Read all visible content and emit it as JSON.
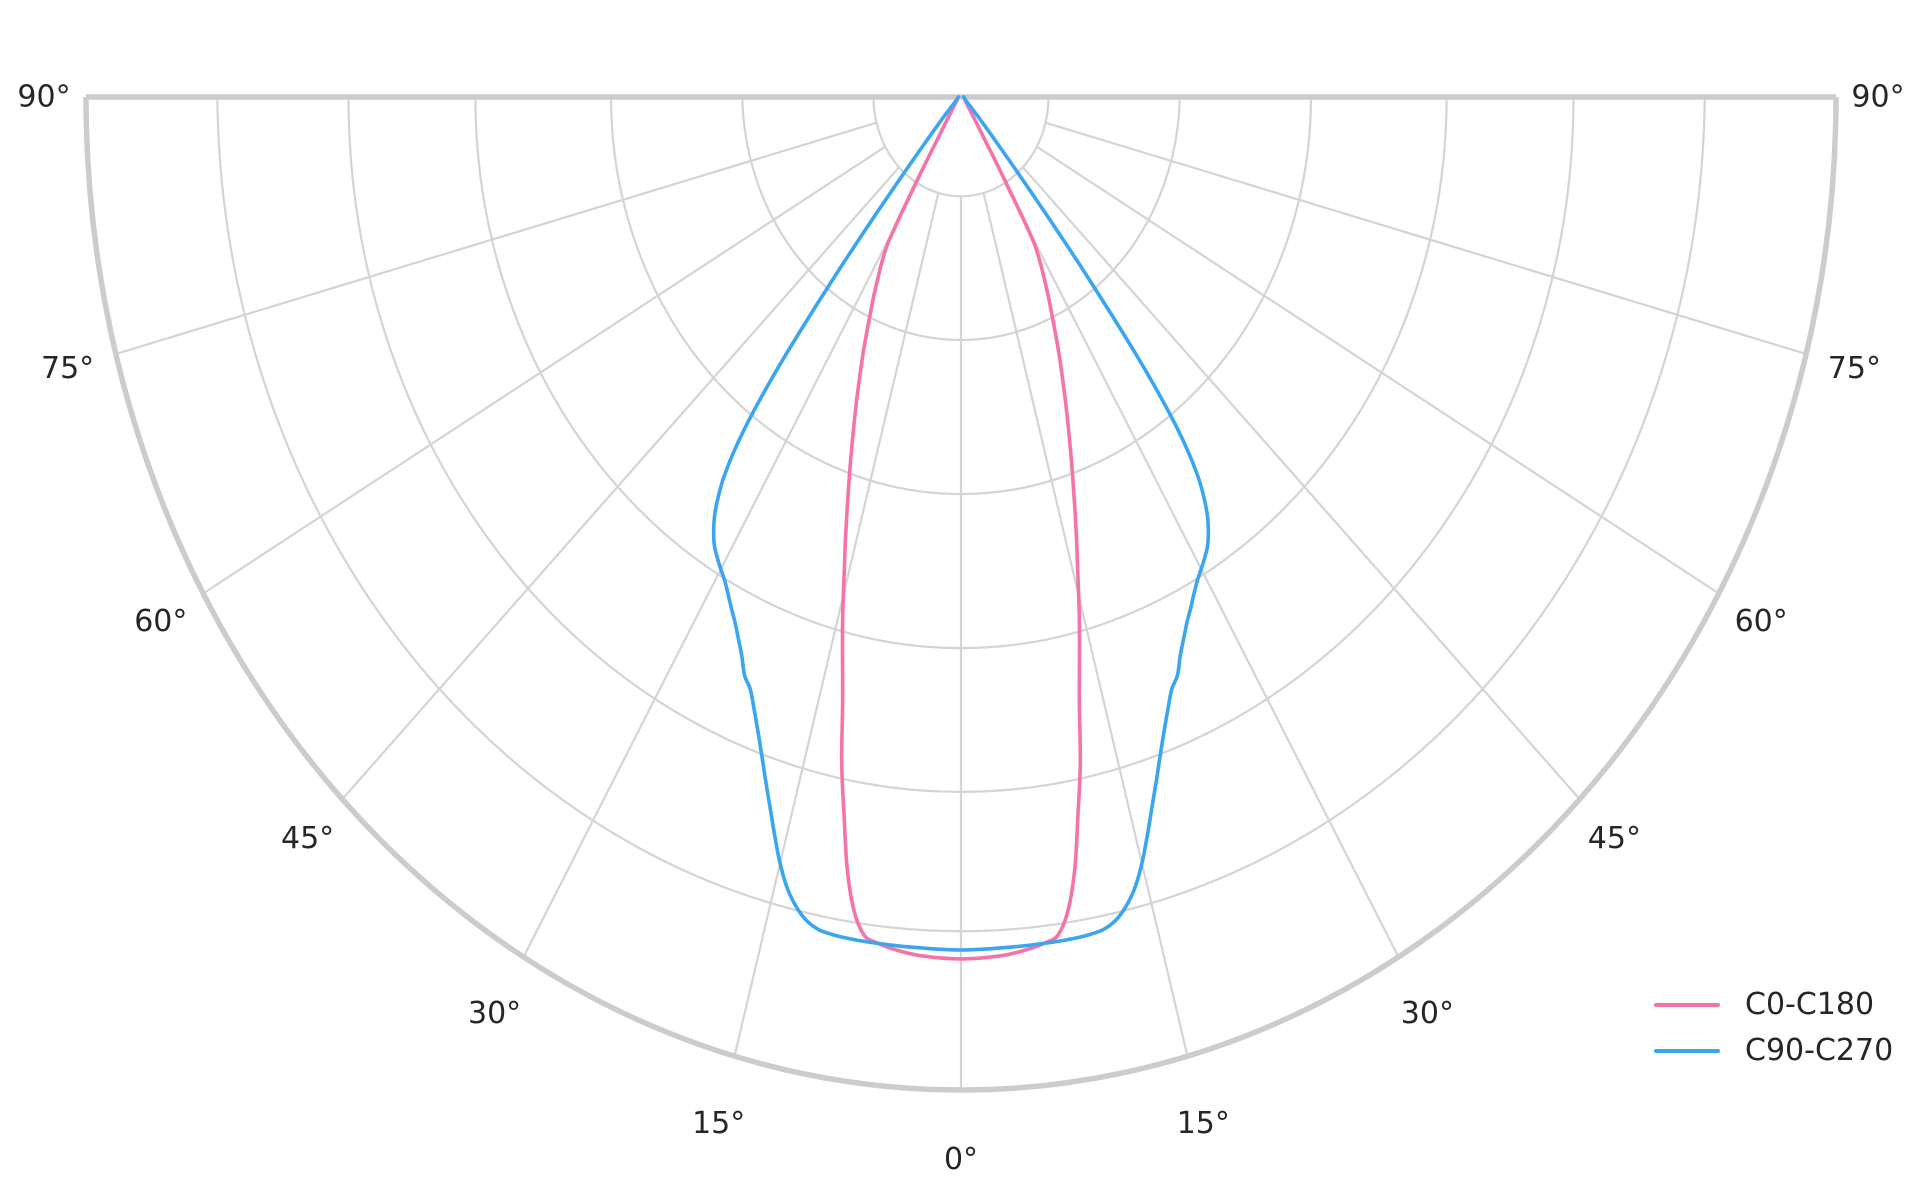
{
  "page": {
    "background": "#ffffff",
    "text_color": "#262626"
  },
  "chart_data": {
    "type": "line",
    "subtype": "polar-photometric-intensity-distribution",
    "title": "",
    "orientation": "half polar plot, 0° at bottom (nadir), ±90° at horizontal top edge",
    "text_color": "#262626",
    "grid": {
      "on": true,
      "ring_color": "#d4d4d4",
      "spine_color": "#cccccc"
    },
    "angular_axis": {
      "unit": "degrees",
      "min": -90,
      "max": 90,
      "gridline_step_deg": 15,
      "ticks": [
        {
          "angle": -90,
          "label": "90°"
        },
        {
          "angle": -75,
          "label": "75°"
        },
        {
          "angle": -60,
          "label": "60°"
        },
        {
          "angle": -45,
          "label": "45°"
        },
        {
          "angle": -30,
          "label": "30°"
        },
        {
          "angle": -15,
          "label": "15°"
        },
        {
          "angle": 0,
          "label": "0°"
        },
        {
          "angle": 15,
          "label": "15°"
        },
        {
          "angle": 30,
          "label": "30°"
        },
        {
          "angle": 45,
          "label": "45°"
        },
        {
          "angle": 60,
          "label": "60°"
        },
        {
          "angle": 75,
          "label": "75°"
        },
        {
          "angle": 90,
          "label": "90°"
        }
      ]
    },
    "radial_axis": {
      "tick_labels_visible": false,
      "inner_hole_fraction": 0.1,
      "ring_fractions": [
        0.1,
        0.25,
        0.4,
        0.555,
        0.7,
        0.85,
        1.0
      ]
    },
    "legend": {
      "position": "bottom-right",
      "entries": [
        "C0-C180",
        "C90-C270"
      ]
    },
    "series": [
      {
        "name": "C0-C180",
        "color": "#f772a6",
        "symmetric_about_zero": true,
        "points_deg_rfrac": [
          [
            0,
            0.868
          ],
          [
            3,
            0.866
          ],
          [
            5,
            0.862
          ],
          [
            6.5,
            0.857
          ],
          [
            7.5,
            0.851
          ],
          [
            8.5,
            0.828
          ],
          [
            9.5,
            0.788
          ],
          [
            10.5,
            0.734
          ],
          [
            11.5,
            0.684
          ],
          [
            12.5,
            0.625
          ],
          [
            13.5,
            0.58
          ],
          [
            14.5,
            0.54
          ],
          [
            15.5,
            0.5
          ],
          [
            16.5,
            0.465
          ],
          [
            17.5,
            0.432
          ],
          [
            18.5,
            0.402
          ],
          [
            19.5,
            0.374
          ],
          [
            20.5,
            0.348
          ],
          [
            21.5,
            0.324
          ],
          [
            22.5,
            0.301
          ],
          [
            23.5,
            0.28
          ],
          [
            24.5,
            0.259
          ],
          [
            25.5,
            0.24
          ],
          [
            26.5,
            0.223
          ],
          [
            27.5,
            0.206
          ],
          [
            28.5,
            0.19
          ],
          [
            29.5,
            0.171
          ],
          [
            30,
            0.148
          ],
          [
            30.5,
            0.115
          ],
          [
            31,
            0.09
          ],
          [
            31.5,
            0.071
          ],
          [
            32,
            0.057
          ],
          [
            33,
            0.041
          ],
          [
            34,
            0.032
          ],
          [
            35,
            0.026
          ],
          [
            37,
            0.019
          ],
          [
            40,
            0.013
          ],
          [
            45,
            0.009
          ],
          [
            50,
            0.007
          ],
          [
            60,
            0.005
          ],
          [
            75,
            0.004
          ],
          [
            90,
            0.003
          ]
        ]
      },
      {
        "name": "C90-C270",
        "color": "#3aa5f0",
        "symmetric_about_zero": true,
        "points_deg_rfrac": [
          [
            0,
            0.859
          ],
          [
            4,
            0.858
          ],
          [
            7,
            0.8575
          ],
          [
            9,
            0.857
          ],
          [
            10,
            0.856
          ],
          [
            11,
            0.854
          ],
          [
            12,
            0.848
          ],
          [
            13,
            0.837
          ],
          [
            14,
            0.821
          ],
          [
            15,
            0.799
          ],
          [
            16,
            0.773
          ],
          [
            17,
            0.747
          ],
          [
            18,
            0.723
          ],
          [
            19,
            0.7
          ],
          [
            20,
            0.679
          ],
          [
            21,
            0.66
          ],
          [
            22,
            0.643
          ],
          [
            23,
            0.633
          ],
          [
            24,
            0.616
          ],
          [
            25,
            0.602
          ],
          [
            26,
            0.589
          ],
          [
            27,
            0.578
          ],
          [
            28,
            0.567
          ],
          [
            29,
            0.557
          ],
          [
            30,
            0.549
          ],
          [
            31,
            0.541
          ],
          [
            32,
            0.532
          ],
          [
            33,
            0.519
          ],
          [
            34,
            0.502
          ],
          [
            35,
            0.478
          ],
          [
            35.5,
            0.462
          ],
          [
            36,
            0.442
          ],
          [
            36.5,
            0.417
          ],
          [
            37,
            0.383
          ],
          [
            37.5,
            0.342
          ],
          [
            38,
            0.292
          ],
          [
            38.5,
            0.242
          ],
          [
            39,
            0.195
          ],
          [
            39.5,
            0.153
          ],
          [
            40,
            0.12
          ],
          [
            40.5,
            0.096
          ],
          [
            41,
            0.078
          ],
          [
            42,
            0.055
          ],
          [
            43,
            0.041
          ],
          [
            44,
            0.032
          ],
          [
            45,
            0.026
          ],
          [
            47,
            0.018
          ],
          [
            50,
            0.012
          ],
          [
            55,
            0.008
          ],
          [
            60,
            0.006
          ],
          [
            75,
            0.004
          ],
          [
            90,
            0.003
          ]
        ]
      }
    ]
  }
}
